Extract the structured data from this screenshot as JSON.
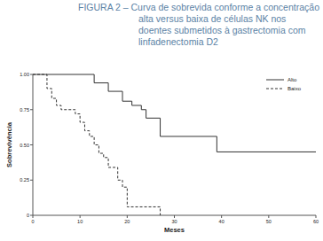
{
  "chart_data": {
    "type": "step",
    "title": [
      "FIGURA 2 – Curva de sobrevida conforme a concentração",
      "alta versus baixa de células NK nos",
      "doentes submetidos à gastrectomia com",
      "linfadenectomia D2"
    ],
    "x_label": "Meses",
    "y_label": "Sobrevivência",
    "xlim": [
      0,
      60
    ],
    "ylim": [
      0,
      1
    ],
    "xticks": [
      0,
      10,
      20,
      30,
      40,
      50,
      60
    ],
    "yticks": [
      0,
      0.25,
      {
        "value": 0.5,
        "label": "0.50"
      },
      0.75,
      {
        "value": 1,
        "label": "1.00"
      }
    ],
    "legend": "top-right",
    "series": [
      {
        "name": "Alto",
        "color": "#333333",
        "line_style": "solid",
        "x": [
          0,
          13,
          16,
          19,
          21,
          23,
          24,
          27,
          39,
          60
        ],
        "values": [
          1,
          0.94,
          0.88,
          0.81,
          0.78,
          0.75,
          0.69,
          0.56,
          0.45,
          0.45
        ]
      },
      {
        "name": "Baixo",
        "color": "#333333",
        "line_style": "dashed",
        "x": [
          0,
          3,
          4,
          5,
          6,
          9,
          10,
          11,
          12,
          13,
          14,
          15,
          16,
          18,
          19,
          20,
          27
        ],
        "values": [
          1,
          0.9,
          0.83,
          0.78,
          0.75,
          0.72,
          0.66,
          0.6,
          0.56,
          0.5,
          0.44,
          0.41,
          0.34,
          0.25,
          0.2,
          0.06,
          0
        ]
      }
    ]
  }
}
